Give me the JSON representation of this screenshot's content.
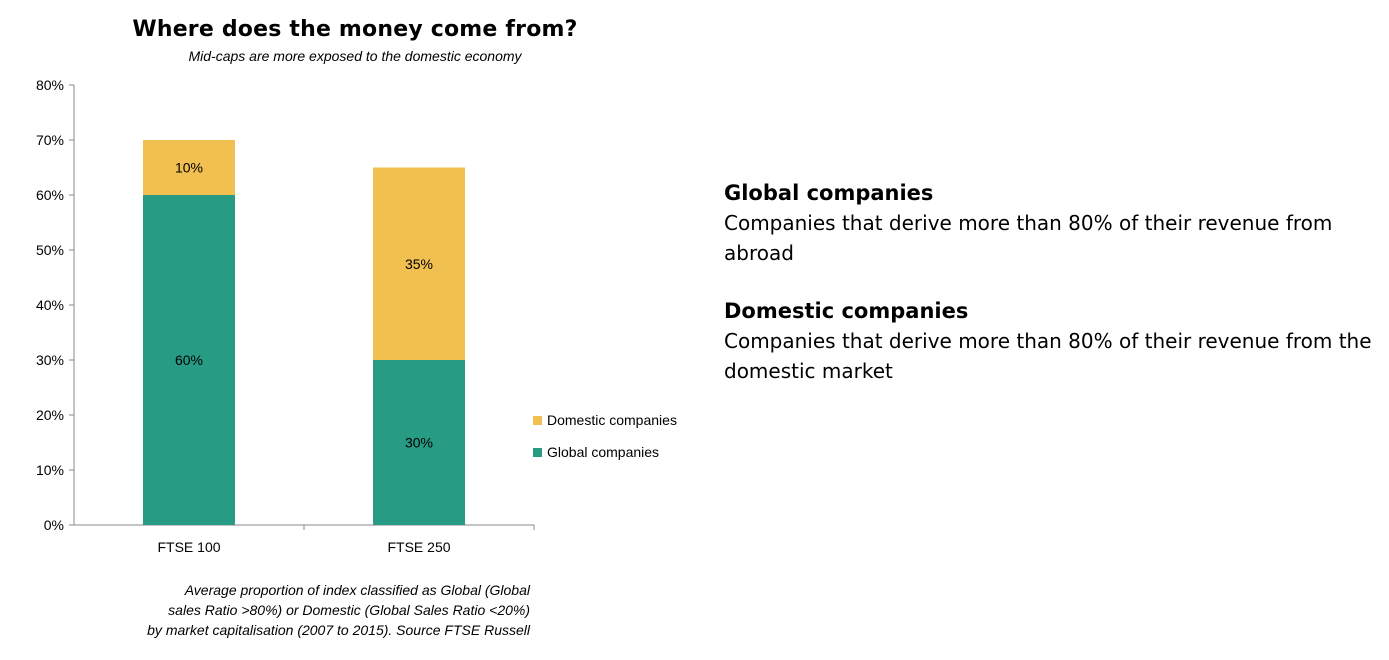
{
  "chart_data": {
    "type": "bar",
    "stacked": true,
    "title": "Where does the money come from?",
    "subtitle": "Mid-caps are more exposed to the domestic economy",
    "categories": [
      "FTSE 100",
      "FTSE 250"
    ],
    "series": [
      {
        "name": "Global companies",
        "values": [
          60,
          30
        ],
        "labels": [
          "60%",
          "30%"
        ],
        "color": "#279B84"
      },
      {
        "name": "Domestic companies",
        "values": [
          10,
          35
        ],
        "labels": [
          "10%",
          "35%"
        ],
        "color": "#F2C050"
      }
    ],
    "ylim": [
      0,
      80
    ],
    "yticks": [
      0,
      10,
      20,
      30,
      40,
      50,
      60,
      70,
      80
    ],
    "ytick_labels": [
      "0%",
      "10%",
      "20%",
      "30%",
      "40%",
      "50%",
      "60%",
      "70%",
      "80%"
    ],
    "legend_placement": "right",
    "grid": false,
    "source_note": [
      "Average proportion of index classified as Global (Global",
      "sales Ratio >80%) or Domestic (Global Sales Ratio <20%)",
      "by market capitalisation (2007 to 2015). Source FTSE Russell"
    ]
  },
  "definitions": [
    {
      "heading": "Global companies",
      "text": "Companies that derive more than 80% of their revenue from abroad"
    },
    {
      "heading": "Domestic companies",
      "text": "Companies that derive more than 80% of their revenue from the domestic market"
    }
  ]
}
